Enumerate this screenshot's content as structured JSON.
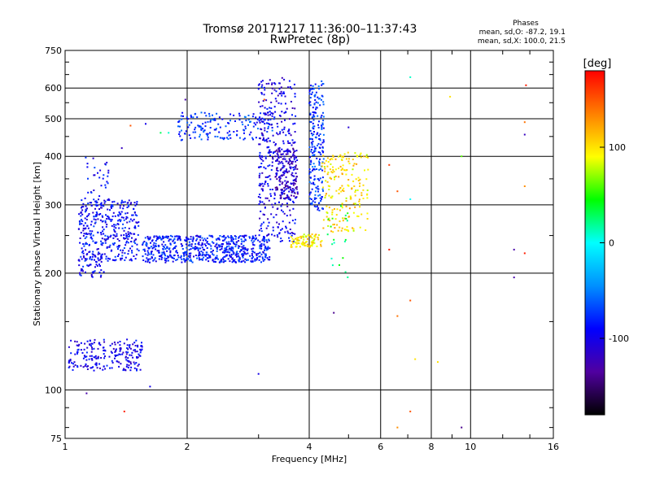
{
  "header": {
    "title_line1": "Tromsø 20171217 11:36:00–11:37:43",
    "title_line2": "RwPretec (8p)",
    "phases_title": "Phases",
    "phases_o": "mean, sd,O: -87.2, 19.1",
    "phases_x": "mean, sd,X: 100.0, 21.5"
  },
  "chart_data": {
    "type": "scatter",
    "xlabel": "Frequency [MHz]",
    "ylabel": "Stationary phase Virtual Height [km]",
    "x_scale": "log",
    "y_scale": "log",
    "xlim": [
      1,
      16
    ],
    "ylim": [
      75,
      750
    ],
    "grid": true,
    "x_ticks": [
      1,
      2,
      4,
      6,
      8,
      10,
      16
    ],
    "x_tick_labels": [
      "1",
      "2",
      "4",
      "6",
      "8",
      "10",
      "16"
    ],
    "y_ticks": [
      75,
      100,
      200,
      300,
      400,
      500,
      600,
      750
    ],
    "y_tick_labels": [
      "75",
      "100",
      "200",
      "300",
      "400",
      "500",
      "600",
      "750"
    ],
    "colorbar": {
      "label": "[deg]",
      "range": [
        -180,
        180
      ],
      "ticks": [
        100,
        0,
        -100
      ],
      "tick_labels": [
        "100",
        "0",
        "-100"
      ],
      "colors": [
        "#000000",
        "#5000a0",
        "#0000ff",
        "#0090ff",
        "#00ffff",
        "#00ff00",
        "#ffff00",
        "#ff8000",
        "#ff0000"
      ]
    },
    "clusters": [
      {
        "f": [
          1.02,
          1.55
        ],
        "h": [
          112,
          135
        ],
        "phase": -100,
        "n": 220
      },
      {
        "f": [
          1.08,
          1.52
        ],
        "h": [
          215,
          310
        ],
        "phase": -90,
        "n": 380
      },
      {
        "f": [
          1.08,
          1.25
        ],
        "h": [
          195,
          225
        ],
        "phase": -95,
        "n": 50
      },
      {
        "f": [
          1.12,
          1.3
        ],
        "h": [
          300,
          400
        ],
        "phase": -90,
        "n": 35
      },
      {
        "f": [
          1.55,
          3.2
        ],
        "h": [
          213,
          250
        ],
        "phase": -85,
        "n": 640
      },
      {
        "f": [
          1.9,
          3.25
        ],
        "h": [
          440,
          520
        ],
        "phase": -75,
        "n": 170
      },
      {
        "f": [
          3.0,
          3.7
        ],
        "h": [
          240,
          640
        ],
        "phase": -100,
        "n": 380
      },
      {
        "f": [
          3.3,
          3.75
        ],
        "h": [
          310,
          420
        ],
        "phase": -120,
        "n": 150
      },
      {
        "f": [
          4.0,
          4.35
        ],
        "h": [
          290,
          630
        ],
        "phase": -75,
        "n": 220
      },
      {
        "f": [
          3.6,
          4.3
        ],
        "h": [
          233,
          252
        ],
        "phase": 100,
        "n": 90
      },
      {
        "f": [
          4.3,
          5.6
        ],
        "h": [
          255,
          410
        ],
        "phase": 100,
        "n": 200
      },
      {
        "f": [
          4.4,
          5.0
        ],
        "h": [
          195,
          300
        ],
        "phase": 30,
        "n": 20
      }
    ],
    "outliers": [
      {
        "f": 7.1,
        "h": 640,
        "phase": 10
      },
      {
        "f": 8.9,
        "h": 570,
        "phase": 100
      },
      {
        "f": 13.7,
        "h": 610,
        "phase": 170
      },
      {
        "f": 13.6,
        "h": 490,
        "phase": 140
      },
      {
        "f": 13.6,
        "h": 455,
        "phase": -120
      },
      {
        "f": 13.6,
        "h": 335,
        "phase": 130
      },
      {
        "f": 6.3,
        "h": 380,
        "phase": 160
      },
      {
        "f": 6.6,
        "h": 325,
        "phase": 150
      },
      {
        "f": 7.1,
        "h": 310,
        "phase": 0
      },
      {
        "f": 9.5,
        "h": 400,
        "phase": 60
      },
      {
        "f": 6.3,
        "h": 230,
        "phase": 170
      },
      {
        "f": 12.8,
        "h": 230,
        "phase": -130
      },
      {
        "f": 12.8,
        "h": 195,
        "phase": -130
      },
      {
        "f": 13.6,
        "h": 225,
        "phase": 170
      },
      {
        "f": 7.1,
        "h": 170,
        "phase": 150
      },
      {
        "f": 6.6,
        "h": 155,
        "phase": 140
      },
      {
        "f": 7.3,
        "h": 120,
        "phase": 100
      },
      {
        "f": 8.3,
        "h": 118,
        "phase": 100
      },
      {
        "f": 4.6,
        "h": 158,
        "phase": -140
      },
      {
        "f": 3.0,
        "h": 110,
        "phase": -100
      },
      {
        "f": 1.62,
        "h": 102,
        "phase": -100
      },
      {
        "f": 1.13,
        "h": 98,
        "phase": -130
      },
      {
        "f": 1.4,
        "h": 88,
        "phase": 170
      },
      {
        "f": 7.1,
        "h": 88,
        "phase": 150
      },
      {
        "f": 6.6,
        "h": 80,
        "phase": 130
      },
      {
        "f": 9.5,
        "h": 80,
        "phase": -140
      },
      {
        "f": 1.45,
        "h": 480,
        "phase": 150
      },
      {
        "f": 1.58,
        "h": 485,
        "phase": -100
      },
      {
        "f": 1.98,
        "h": 560,
        "phase": -130
      },
      {
        "f": 3.1,
        "h": 560,
        "phase": 150
      },
      {
        "f": 5.0,
        "h": 475,
        "phase": -110
      },
      {
        "f": 1.72,
        "h": 460,
        "phase": 30
      },
      {
        "f": 1.8,
        "h": 460,
        "phase": 10
      },
      {
        "f": 1.38,
        "h": 420,
        "phase": -120
      }
    ]
  }
}
